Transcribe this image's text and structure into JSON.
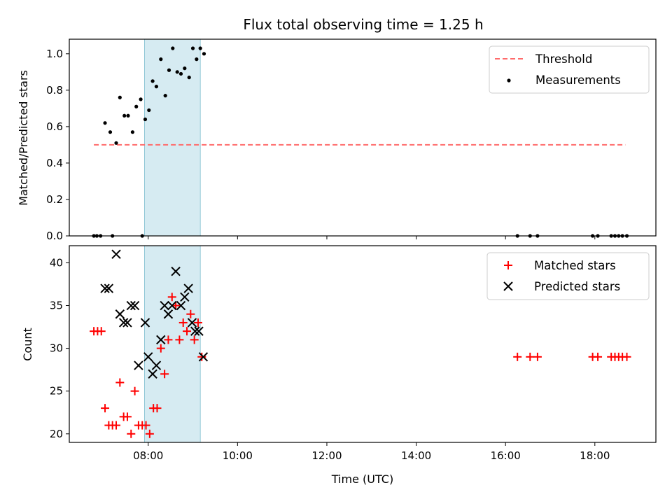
{
  "chart_data": [
    {
      "type": "scatter",
      "title": "Flux total observing time = 1.25 h",
      "xlabel": "",
      "ylabel": "Matched/Predicted stars",
      "xlim": [
        "06:14",
        "19:22"
      ],
      "ylim": [
        0,
        1.08
      ],
      "yticks": [
        "0.0",
        "0.2",
        "0.4",
        "0.6",
        "0.8",
        "1.0"
      ],
      "highlight_span": {
        "x": [
          "07:55",
          "09:10"
        ],
        "color": "#add8e6"
      },
      "threshold": {
        "name": "Threshold",
        "y": 0.5,
        "x": [
          "06:47",
          "18:41"
        ],
        "color": "#ff6b6b",
        "style": "dashed"
      },
      "series": [
        {
          "name": "Measurements",
          "color": "#000000",
          "points": [
            [
              "06:47",
              0
            ],
            [
              "06:51",
              0
            ],
            [
              "06:56",
              0
            ],
            [
              "07:12",
              0
            ],
            [
              "07:52",
              0
            ],
            [
              "07:02",
              0.62
            ],
            [
              "07:09",
              0.57
            ],
            [
              "07:17",
              0.51
            ],
            [
              "07:22",
              0.76
            ],
            [
              "07:28",
              0.66
            ],
            [
              "07:33",
              0.66
            ],
            [
              "07:39",
              0.57
            ],
            [
              "07:44",
              0.71
            ],
            [
              "07:50",
              0.75
            ],
            [
              "07:56",
              0.64
            ],
            [
              "08:01",
              0.69
            ],
            [
              "08:06",
              0.85
            ],
            [
              "08:11",
              0.82
            ],
            [
              "08:17",
              0.97
            ],
            [
              "08:23",
              0.77
            ],
            [
              "08:28",
              0.91
            ],
            [
              "08:33",
              1.03
            ],
            [
              "08:39",
              0.9
            ],
            [
              "08:44",
              0.89
            ],
            [
              "08:49",
              0.92
            ],
            [
              "08:55",
              0.87
            ],
            [
              "09:00",
              1.03
            ],
            [
              "09:05",
              0.97
            ],
            [
              "09:10",
              1.03
            ],
            [
              "09:15",
              1.0
            ],
            [
              "16:16",
              0
            ],
            [
              "16:33",
              0
            ],
            [
              "16:43",
              0
            ],
            [
              "17:57",
              0
            ],
            [
              "18:04",
              0
            ],
            [
              "18:22",
              0
            ],
            [
              "18:27",
              0
            ],
            [
              "18:32",
              0
            ],
            [
              "18:37",
              0
            ],
            [
              "18:43",
              0
            ]
          ]
        }
      ],
      "legend": "top-right"
    },
    {
      "type": "scatter",
      "title": "",
      "xlabel": "Time (UTC)",
      "ylabel": "Count",
      "xlim": [
        "06:14",
        "19:22"
      ],
      "ylim": [
        19,
        42
      ],
      "yticks": [
        "20",
        "25",
        "30",
        "35",
        "40"
      ],
      "xticks": [
        "08:00",
        "10:00",
        "12:00",
        "14:00",
        "16:00",
        "18:00"
      ],
      "highlight_span": {
        "x": [
          "07:55",
          "09:10"
        ],
        "color": "#add8e6"
      },
      "series": [
        {
          "name": "Matched stars",
          "color": "#ff0000",
          "marker": "plus",
          "points": [
            [
              "06:47",
              32
            ],
            [
              "06:52",
              32
            ],
            [
              "06:57",
              32
            ],
            [
              "07:02",
              23
            ],
            [
              "07:07",
              21
            ],
            [
              "07:12",
              21
            ],
            [
              "07:17",
              21
            ],
            [
              "07:22",
              26
            ],
            [
              "07:27",
              22
            ],
            [
              "07:32",
              22
            ],
            [
              "07:37",
              20
            ],
            [
              "07:42",
              25
            ],
            [
              "07:47",
              21
            ],
            [
              "07:52",
              21
            ],
            [
              "07:57",
              21
            ],
            [
              "08:02",
              20
            ],
            [
              "08:07",
              23
            ],
            [
              "08:12",
              23
            ],
            [
              "08:17",
              30
            ],
            [
              "08:22",
              27
            ],
            [
              "08:27",
              31
            ],
            [
              "08:32",
              36
            ],
            [
              "08:37",
              35
            ],
            [
              "08:42",
              31
            ],
            [
              "08:47",
              33
            ],
            [
              "08:52",
              32
            ],
            [
              "08:57",
              34
            ],
            [
              "09:02",
              31
            ],
            [
              "09:07",
              33
            ],
            [
              "09:12",
              29
            ],
            [
              "16:16",
              29
            ],
            [
              "16:33",
              29
            ],
            [
              "16:43",
              29
            ],
            [
              "17:57",
              29
            ],
            [
              "18:04",
              29
            ],
            [
              "18:22",
              29
            ],
            [
              "18:27",
              29
            ],
            [
              "18:32",
              29
            ],
            [
              "18:37",
              29
            ],
            [
              "18:43",
              29
            ]
          ]
        },
        {
          "name": "Predicted stars",
          "color": "#000000",
          "marker": "x",
          "points": [
            [
              "07:02",
              37
            ],
            [
              "07:07",
              37
            ],
            [
              "07:17",
              41
            ],
            [
              "07:22",
              34
            ],
            [
              "07:27",
              33
            ],
            [
              "07:32",
              33
            ],
            [
              "07:37",
              35
            ],
            [
              "07:42",
              35
            ],
            [
              "07:47",
              28
            ],
            [
              "07:56",
              33
            ],
            [
              "08:00",
              29
            ],
            [
              "08:06",
              27
            ],
            [
              "08:11",
              28
            ],
            [
              "08:17",
              31
            ],
            [
              "08:22",
              35
            ],
            [
              "08:27",
              34
            ],
            [
              "08:32",
              35
            ],
            [
              "08:37",
              39
            ],
            [
              "08:44",
              35
            ],
            [
              "08:49",
              36
            ],
            [
              "08:54",
              37
            ],
            [
              "08:59",
              33
            ],
            [
              "09:03",
              32
            ],
            [
              "09:08",
              32
            ],
            [
              "09:14",
              29
            ]
          ]
        }
      ],
      "legend": "top-right"
    }
  ]
}
